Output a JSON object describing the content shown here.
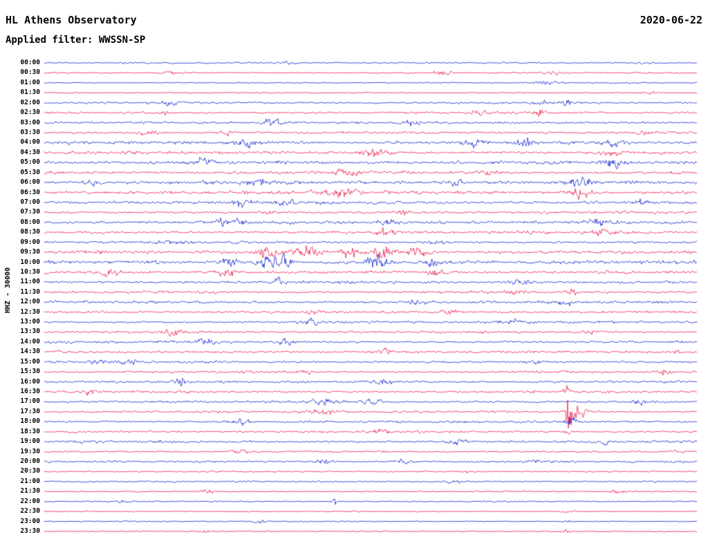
{
  "header": {
    "title": "HL Athens Observatory",
    "date": "2020-06-22",
    "filter_label": "Applied filter: WWSSN-SP"
  },
  "axis": {
    "channel_label": "HHZ - 30000"
  },
  "colors": {
    "blue": "#1021cc",
    "red": "#ea1548"
  },
  "chart_data": {
    "type": "line",
    "subtype": "seismogram-helicorder",
    "title": "HL Athens Observatory",
    "date": "2020-06-22",
    "filter": "WWSSN-SP",
    "channel": "HHZ",
    "scale": 30000,
    "row_interval_minutes": 30,
    "x_span_minutes": 30,
    "legend_position": "none",
    "grid": false,
    "rows": [
      {
        "time": "00:00",
        "color": "blue",
        "base": 1.2,
        "bursts": [
          [
            0.37,
            2.5,
            0.01
          ],
          [
            0.92,
            2,
            0.01
          ]
        ]
      },
      {
        "time": "00:30",
        "color": "red",
        "base": 1.2,
        "bursts": [
          [
            0.2,
            2,
            0.012
          ],
          [
            0.61,
            5,
            0.008
          ],
          [
            0.78,
            3,
            0.01
          ]
        ]
      },
      {
        "time": "01:00",
        "color": "blue",
        "base": 1.0,
        "bursts": [
          [
            0.77,
            2.5,
            0.012
          ]
        ]
      },
      {
        "time": "01:30",
        "color": "red",
        "base": 1.0,
        "bursts": [
          [
            0.93,
            2,
            0.008
          ]
        ]
      },
      {
        "time": "02:00",
        "color": "blue",
        "base": 1.6,
        "bursts": [
          [
            0.19,
            4,
            0.008
          ],
          [
            0.77,
            4,
            0.01
          ],
          [
            0.8,
            5,
            0.006
          ]
        ]
      },
      {
        "time": "02:30",
        "color": "red",
        "base": 1.6,
        "bursts": [
          [
            0.18,
            3.5,
            0.006
          ],
          [
            0.67,
            5,
            0.01
          ],
          [
            0.76,
            4,
            0.008
          ]
        ]
      },
      {
        "time": "03:00",
        "color": "blue",
        "base": 1.8,
        "bursts": [
          [
            0.35,
            5,
            0.012
          ],
          [
            0.56,
            3,
            0.01
          ]
        ]
      },
      {
        "time": "03:30",
        "color": "red",
        "base": 1.8,
        "bursts": [
          [
            0.16,
            4,
            0.01
          ],
          [
            0.28,
            3.5,
            0.008
          ],
          [
            0.92,
            4,
            0.01
          ]
        ]
      },
      {
        "time": "04:00",
        "color": "blue",
        "base": 2.4,
        "bursts": [
          [
            0.31,
            5,
            0.015
          ],
          [
            0.66,
            4,
            0.012
          ],
          [
            0.74,
            4.5,
            0.01
          ],
          [
            0.87,
            5,
            0.012
          ]
        ]
      },
      {
        "time": "04:30",
        "color": "red",
        "base": 2.4,
        "bursts": [
          [
            0.51,
            6,
            0.015
          ],
          [
            0.87,
            4,
            0.01
          ]
        ]
      },
      {
        "time": "05:00",
        "color": "blue",
        "base": 2.6,
        "bursts": [
          [
            0.24,
            5,
            0.012
          ],
          [
            0.87,
            5,
            0.012
          ]
        ]
      },
      {
        "time": "05:30",
        "color": "red",
        "base": 2.2,
        "bursts": [
          [
            0.46,
            5,
            0.012
          ],
          [
            0.68,
            3.5,
            0.01
          ]
        ]
      },
      {
        "time": "06:00",
        "color": "blue",
        "base": 2.6,
        "bursts": [
          [
            0.07,
            5,
            0.01
          ],
          [
            0.33,
            5,
            0.012
          ],
          [
            0.63,
            4,
            0.01
          ],
          [
            0.82,
            5,
            0.015
          ]
        ]
      },
      {
        "time": "06:30",
        "color": "red",
        "base": 2.6,
        "bursts": [
          [
            0.45,
            5.5,
            0.015
          ],
          [
            0.82,
            6,
            0.012
          ]
        ]
      },
      {
        "time": "07:00",
        "color": "blue",
        "base": 2.4,
        "bursts": [
          [
            0.3,
            5,
            0.012
          ],
          [
            0.37,
            4.5,
            0.01
          ],
          [
            0.92,
            4,
            0.01
          ]
        ]
      },
      {
        "time": "07:30",
        "color": "red",
        "base": 2.0,
        "bursts": [
          [
            0.34,
            3.5,
            0.01
          ],
          [
            0.55,
            3,
            0.01
          ]
        ]
      },
      {
        "time": "08:00",
        "color": "blue",
        "base": 2.2,
        "bursts": [
          [
            0.27,
            5,
            0.01
          ],
          [
            0.3,
            5,
            0.008
          ],
          [
            0.53,
            4,
            0.012
          ],
          [
            0.85,
            5,
            0.012
          ]
        ]
      },
      {
        "time": "08:30",
        "color": "red",
        "base": 2.2,
        "bursts": [
          [
            0.52,
            6,
            0.012
          ],
          [
            0.85,
            4,
            0.01
          ]
        ]
      },
      {
        "time": "09:00",
        "color": "blue",
        "base": 1.8,
        "bursts": [
          [
            0.19,
            4,
            0.01
          ],
          [
            0.6,
            3.5,
            0.012
          ]
        ]
      },
      {
        "time": "09:30",
        "color": "red",
        "base": 2.4,
        "bursts": [
          [
            0.34,
            8,
            0.01
          ],
          [
            0.4,
            9,
            0.012
          ],
          [
            0.47,
            7,
            0.01
          ],
          [
            0.52,
            10,
            0.012
          ],
          [
            0.57,
            7,
            0.01
          ]
        ]
      },
      {
        "time": "10:00",
        "color": "blue",
        "base": 2.6,
        "bursts": [
          [
            0.28,
            7,
            0.012
          ],
          [
            0.34,
            9,
            0.01
          ],
          [
            0.37,
            8,
            0.008
          ],
          [
            0.51,
            9,
            0.012
          ],
          [
            0.6,
            6,
            0.01
          ]
        ]
      },
      {
        "time": "10:30",
        "color": "red",
        "base": 2.2,
        "bursts": [
          [
            0.1,
            5,
            0.01
          ],
          [
            0.28,
            6,
            0.012
          ],
          [
            0.6,
            4,
            0.01
          ]
        ]
      },
      {
        "time": "11:00",
        "color": "blue",
        "base": 2.0,
        "bursts": [
          [
            0.36,
            8,
            0.005
          ],
          [
            0.73,
            4,
            0.012
          ]
        ]
      },
      {
        "time": "11:30",
        "color": "red",
        "base": 2.0,
        "bursts": [
          [
            0.72,
            4,
            0.01
          ],
          [
            0.81,
            7,
            0.005
          ]
        ]
      },
      {
        "time": "12:00",
        "color": "blue",
        "base": 2.0,
        "bursts": [
          [
            0.57,
            4.5,
            0.012
          ],
          [
            0.8,
            4,
            0.008
          ]
        ]
      },
      {
        "time": "12:30",
        "color": "red",
        "base": 1.8,
        "bursts": [
          [
            0.41,
            3.5,
            0.01
          ],
          [
            0.62,
            3,
            0.01
          ]
        ]
      },
      {
        "time": "13:00",
        "color": "blue",
        "base": 1.8,
        "bursts": [
          [
            0.41,
            4,
            0.012
          ],
          [
            0.72,
            4.5,
            0.01
          ]
        ]
      },
      {
        "time": "13:30",
        "color": "red",
        "base": 1.8,
        "bursts": [
          [
            0.2,
            3.5,
            0.01
          ],
          [
            0.84,
            3,
            0.008
          ]
        ]
      },
      {
        "time": "14:00",
        "color": "blue",
        "base": 1.8,
        "bursts": [
          [
            0.25,
            4.5,
            0.012
          ],
          [
            0.37,
            5,
            0.008
          ]
        ]
      },
      {
        "time": "14:30",
        "color": "red",
        "base": 1.8,
        "bursts": [
          [
            0.52,
            4.5,
            0.01
          ],
          [
            0.97,
            4,
            0.008
          ]
        ]
      },
      {
        "time": "15:00",
        "color": "blue",
        "base": 1.8,
        "bursts": [
          [
            0.08,
            4.5,
            0.008
          ],
          [
            0.13,
            4,
            0.008
          ],
          [
            0.75,
            3,
            0.01
          ]
        ]
      },
      {
        "time": "15:30",
        "color": "red",
        "base": 1.8,
        "bursts": [
          [
            0.4,
            3,
            0.01
          ],
          [
            0.95,
            4,
            0.008
          ]
        ]
      },
      {
        "time": "16:00",
        "color": "blue",
        "base": 1.8,
        "bursts": [
          [
            0.21,
            5,
            0.008
          ],
          [
            0.52,
            3.5,
            0.01
          ]
        ]
      },
      {
        "time": "16:30",
        "color": "red",
        "base": 1.8,
        "bursts": [
          [
            0.07,
            4,
            0.008
          ],
          [
            0.8,
            8,
            0.004
          ]
        ]
      },
      {
        "time": "17:00",
        "color": "blue",
        "base": 1.8,
        "bursts": [
          [
            0.43,
            4.5,
            0.015
          ],
          [
            0.5,
            4,
            0.01
          ],
          [
            0.91,
            3.5,
            0.008
          ]
        ]
      },
      {
        "time": "17:30",
        "color": "red",
        "base": 1.8,
        "bursts": [
          [
            0.43,
            4,
            0.012
          ],
          [
            0.805,
            38,
            0.004
          ],
          [
            0.82,
            10,
            0.008
          ]
        ]
      },
      {
        "time": "18:00",
        "color": "blue",
        "base": 1.8,
        "bursts": [
          [
            0.3,
            3.5,
            0.01
          ],
          [
            0.805,
            8,
            0.006
          ]
        ]
      },
      {
        "time": "18:30",
        "color": "red",
        "base": 1.8,
        "bursts": [
          [
            0.52,
            4,
            0.01
          ],
          [
            0.805,
            5,
            0.005
          ]
        ]
      },
      {
        "time": "19:00",
        "color": "blue",
        "base": 1.8,
        "bursts": [
          [
            0.635,
            4.5,
            0.01
          ],
          [
            0.86,
            3,
            0.008
          ]
        ]
      },
      {
        "time": "19:30",
        "color": "red",
        "base": 1.5,
        "bursts": [
          [
            0.3,
            3,
            0.01
          ]
        ]
      },
      {
        "time": "20:00",
        "color": "blue",
        "base": 1.6,
        "bursts": [
          [
            0.43,
            4,
            0.008
          ],
          [
            0.55,
            4.5,
            0.008
          ],
          [
            0.75,
            3,
            0.008
          ]
        ]
      },
      {
        "time": "20:30",
        "color": "red",
        "base": 1.2,
        "bursts": [
          [
            0.65,
            2.5,
            0.01
          ]
        ]
      },
      {
        "time": "21:00",
        "color": "blue",
        "base": 1.2,
        "bursts": [
          [
            0.63,
            3,
            0.008
          ]
        ]
      },
      {
        "time": "21:30",
        "color": "red",
        "base": 1.1,
        "bursts": [
          [
            0.25,
            2.5,
            0.008
          ],
          [
            0.88,
            3,
            0.008
          ]
        ]
      },
      {
        "time": "22:00",
        "color": "blue",
        "base": 1.1,
        "bursts": [
          [
            0.12,
            2.5,
            0.008
          ],
          [
            0.445,
            9,
            0.002
          ]
        ]
      },
      {
        "time": "22:30",
        "color": "red",
        "base": 0.9,
        "bursts": [
          [
            0.8,
            2,
            0.01
          ]
        ]
      },
      {
        "time": "23:00",
        "color": "blue",
        "base": 0.9,
        "bursts": [
          [
            0.33,
            2.5,
            0.006
          ],
          [
            0.8,
            2.5,
            0.006
          ]
        ]
      },
      {
        "time": "23:30",
        "color": "red",
        "base": 0.9,
        "bursts": [
          [
            0.25,
            2,
            0.006
          ],
          [
            0.8,
            2.5,
            0.006
          ]
        ]
      }
    ]
  }
}
